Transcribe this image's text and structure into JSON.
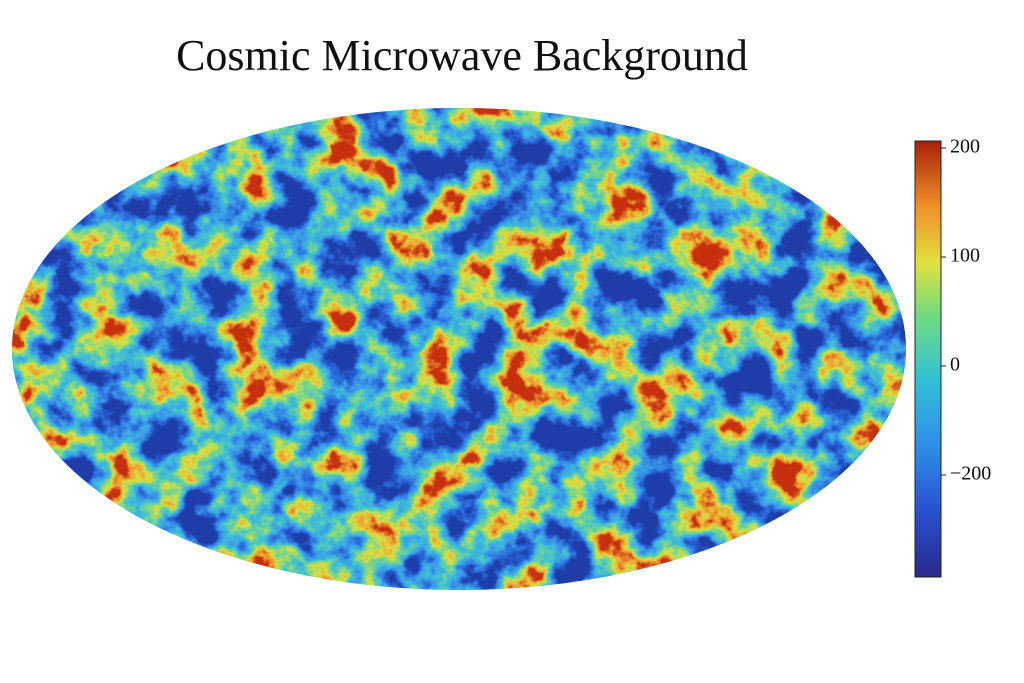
{
  "chart_data": {
    "type": "map",
    "title": "Cosmic Microwave Background",
    "colorbar": {
      "ticks": [
        {
          "value": 200,
          "label": "200"
        },
        {
          "value": 100,
          "label": "100"
        },
        {
          "value": 0,
          "label": "0"
        },
        {
          "value": -200,
          "label": "−200"
        }
      ]
    }
  }
}
